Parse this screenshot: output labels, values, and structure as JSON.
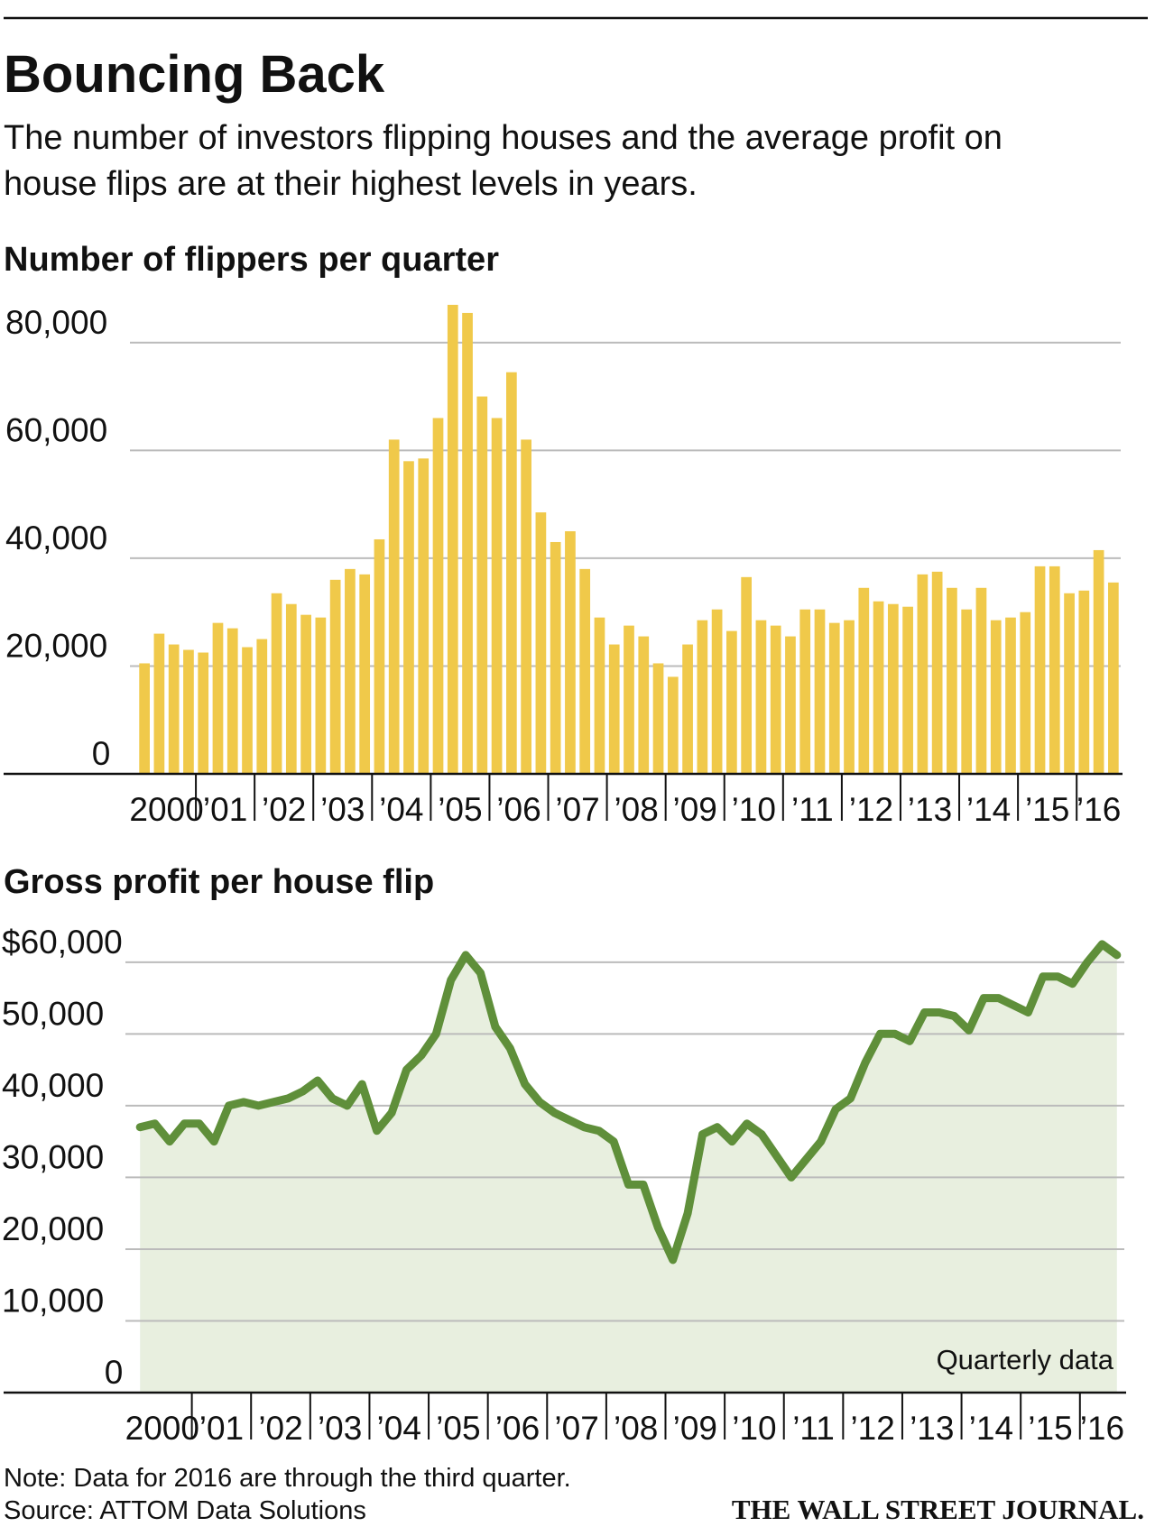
{
  "title": "Bouncing Back",
  "subtitle_lines": [
    "The number of investors flipping houses and the average profit on",
    "house flips are at their highest levels in years."
  ],
  "note": "Note: Data for 2016 are through the third quarter.",
  "source": "Source: ATTOM Data Solutions",
  "credit": "THE WALL STREET JOURNAL.",
  "chart_data": [
    {
      "type": "bar",
      "title": "Number of flippers per quarter",
      "color": "#f0c94a",
      "categories": [
        "2000",
        null,
        null,
        null,
        "’01",
        null,
        null,
        null,
        "’02",
        null,
        null,
        null,
        "’03",
        null,
        null,
        null,
        "’04",
        null,
        null,
        null,
        "’05",
        null,
        null,
        null,
        "’06",
        null,
        null,
        null,
        "’07",
        null,
        null,
        null,
        "’08",
        null,
        null,
        null,
        "’09",
        null,
        null,
        null,
        "’10",
        null,
        null,
        null,
        "’11",
        null,
        null,
        null,
        "’12",
        null,
        null,
        null,
        "’13",
        null,
        null,
        null,
        "’14",
        null,
        null,
        null,
        "’15",
        null,
        null,
        null,
        "’16",
        null,
        null
      ],
      "values": [
        20500,
        26000,
        24000,
        23000,
        22500,
        28000,
        27000,
        23500,
        25000,
        33500,
        31500,
        29500,
        29000,
        36000,
        38000,
        37000,
        43500,
        62000,
        58000,
        58500,
        66000,
        87000,
        85500,
        70000,
        66000,
        74500,
        62000,
        48500,
        43000,
        45000,
        38000,
        29000,
        24000,
        27500,
        25500,
        20500,
        18000,
        24000,
        28500,
        30500,
        26500,
        36500,
        28500,
        27500,
        25500,
        30500,
        30500,
        28000,
        28500,
        34500,
        32000,
        31500,
        31000,
        37000,
        37500,
        34500,
        30500,
        34500,
        28500,
        29000,
        30000,
        38500,
        38500,
        33500,
        34000,
        41500,
        35500
      ],
      "ylim": [
        0,
        88000
      ],
      "yticks": [
        0,
        {
          "value": 20000,
          "label": "20,000"
        },
        {
          "value": 40000,
          "label": "40,000"
        },
        {
          "value": 60000,
          "label": "60,000"
        },
        {
          "value": 80000,
          "label": "80,000"
        }
      ],
      "grid": true
    },
    {
      "type": "area",
      "title": "Gross profit per house flip",
      "color": "#5f8f3a",
      "fill": "#e8efdf",
      "annotation": "Quarterly data",
      "categories": [
        "2000",
        null,
        null,
        null,
        "’01",
        null,
        null,
        null,
        "’02",
        null,
        null,
        null,
        "’03",
        null,
        null,
        null,
        "’04",
        null,
        null,
        null,
        "’05",
        null,
        null,
        null,
        "’06",
        null,
        null,
        null,
        "’07",
        null,
        null,
        null,
        "’08",
        null,
        null,
        null,
        "’09",
        null,
        null,
        null,
        "’10",
        null,
        null,
        null,
        "’11",
        null,
        null,
        null,
        "’12",
        null,
        null,
        null,
        "’13",
        null,
        null,
        null,
        "’14",
        null,
        null,
        null,
        "’15",
        null,
        null,
        null,
        "’16",
        null,
        null
      ],
      "values": [
        37000,
        37500,
        35000,
        37500,
        37500,
        35000,
        40000,
        40500,
        40000,
        40500,
        41000,
        42000,
        43500,
        41000,
        40000,
        43000,
        36500,
        39000,
        45000,
        47000,
        50000,
        57500,
        61000,
        58500,
        51000,
        48000,
        43000,
        40500,
        39000,
        38000,
        37000,
        36500,
        35000,
        29000,
        29000,
        23000,
        18500,
        25000,
        36000,
        37000,
        35000,
        37500,
        36000,
        33000,
        30000,
        32500,
        35000,
        39500,
        41000,
        46000,
        50000,
        50000,
        49000,
        53000,
        53000,
        52500,
        50500,
        55000,
        55000,
        54000,
        53000,
        58000,
        58000,
        57000,
        60000,
        62500,
        61000
      ],
      "ylim": [
        0,
        64000
      ],
      "yticks": [
        0,
        {
          "value": 10000,
          "label": "10,000"
        },
        {
          "value": 20000,
          "label": "20,000"
        },
        {
          "value": 30000,
          "label": "30,000"
        },
        {
          "value": 40000,
          "label": "40,000"
        },
        {
          "value": 50000,
          "label": "50,000"
        },
        {
          "value": 60000,
          "label": "$60,000"
        }
      ],
      "grid": true
    }
  ]
}
